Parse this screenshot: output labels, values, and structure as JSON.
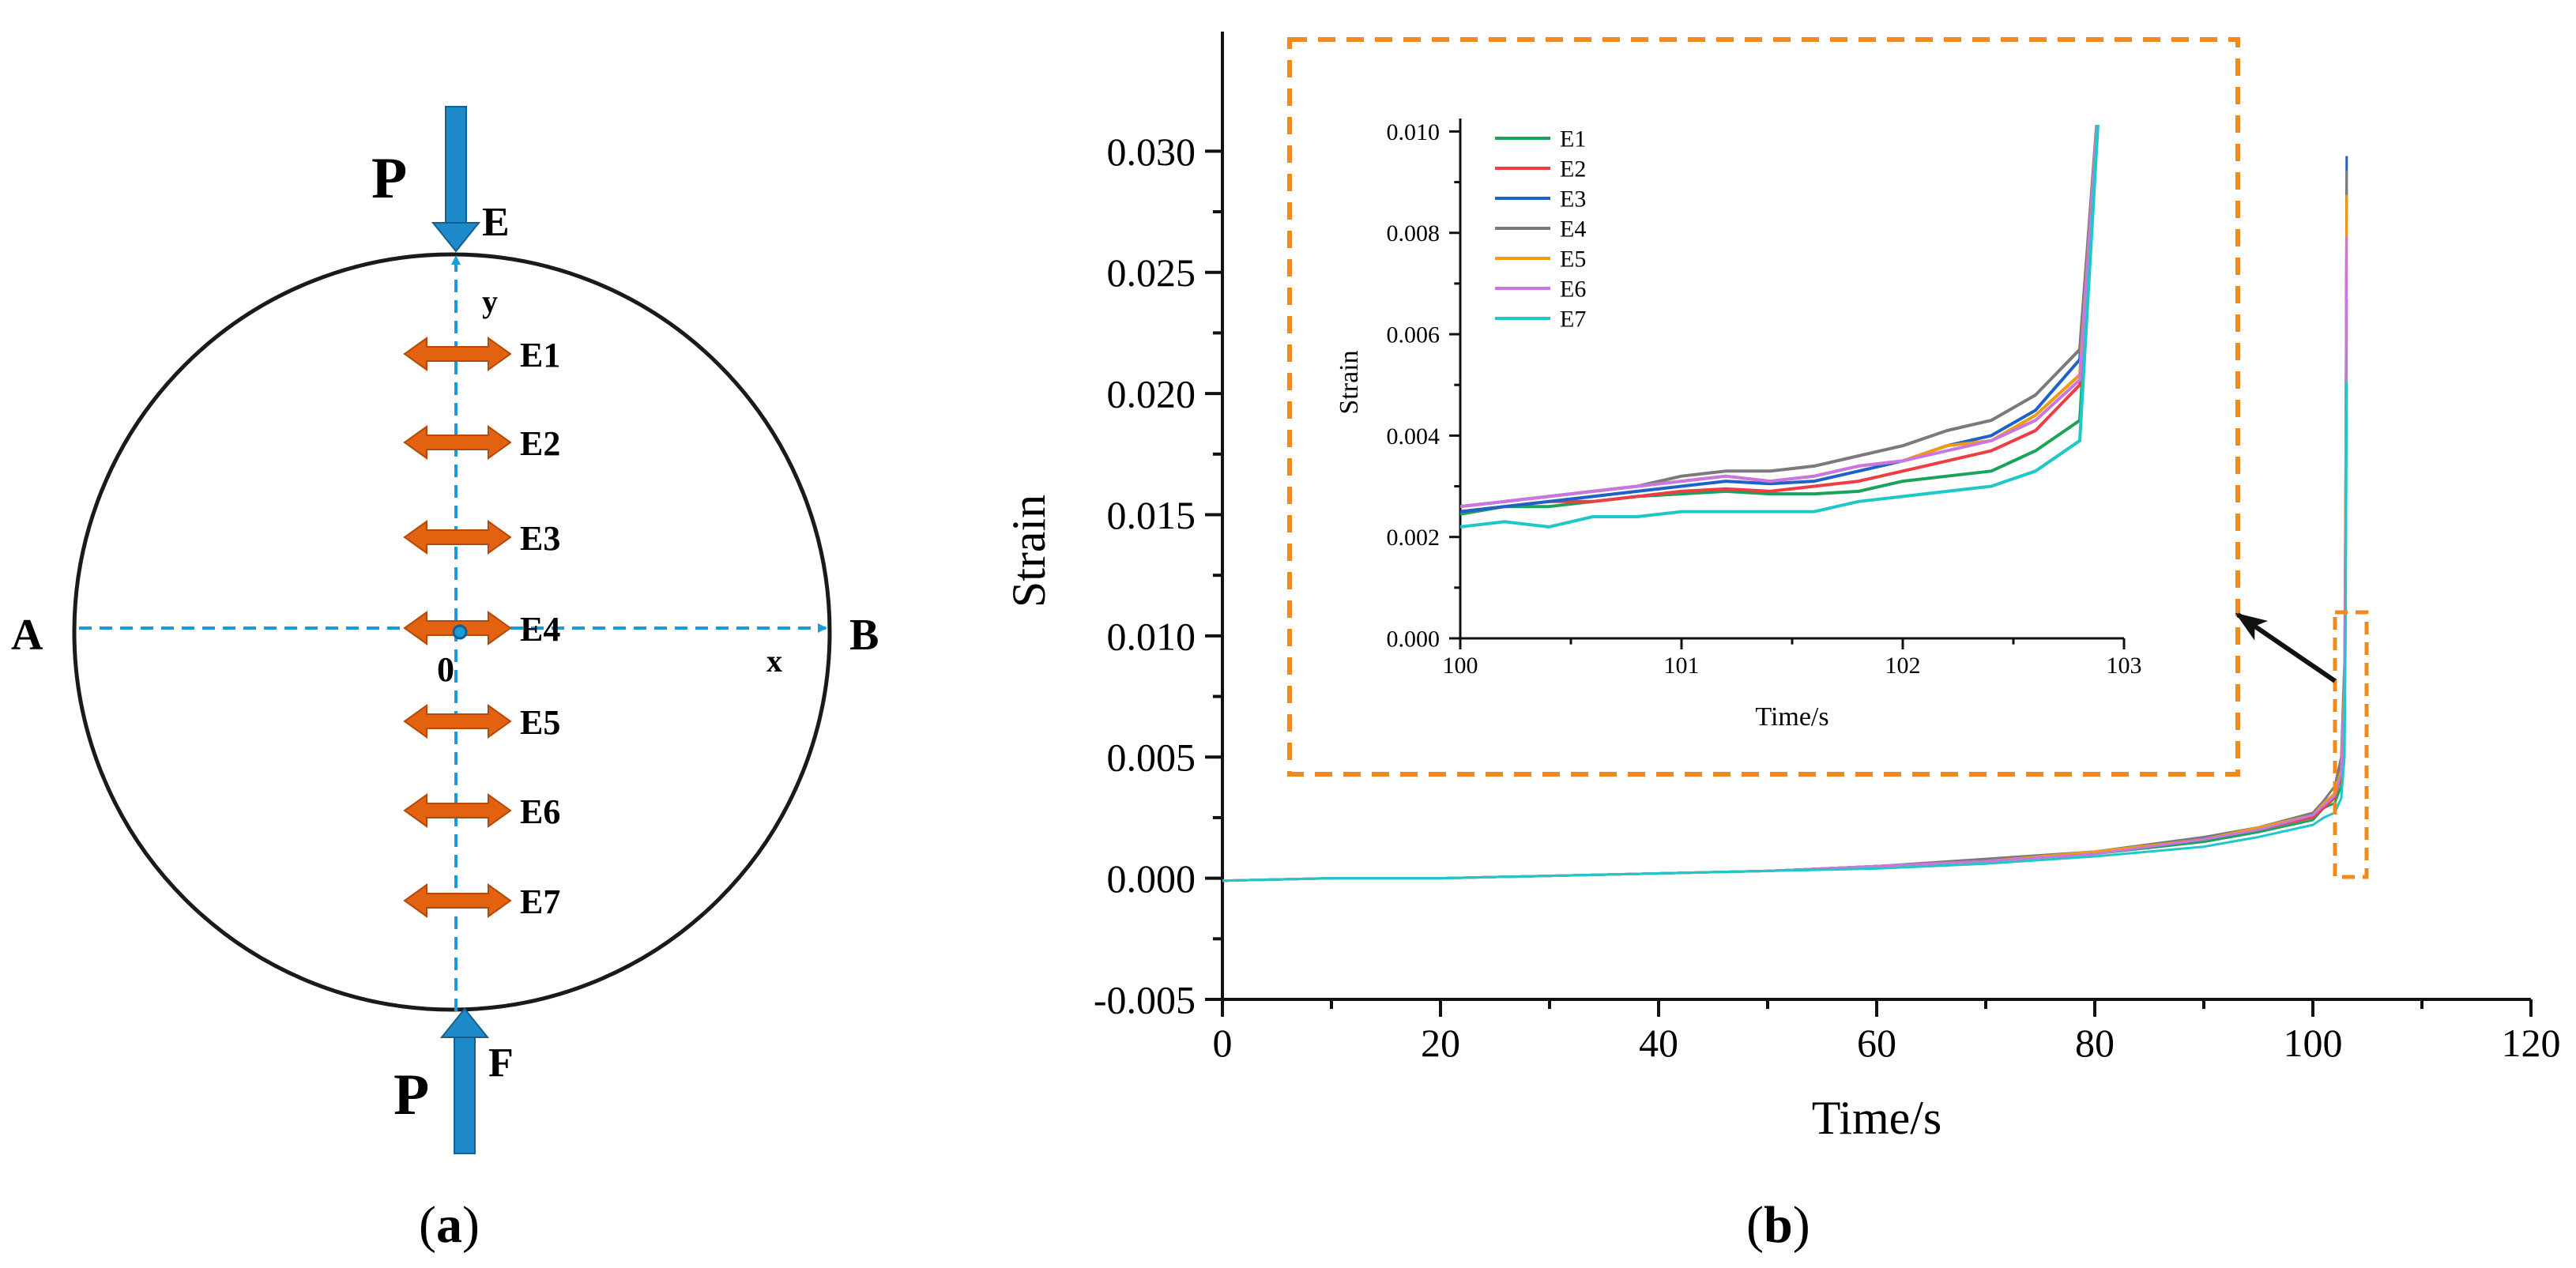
{
  "panel_a": {
    "label_open": "(",
    "label_letter": "a",
    "label_close": ")",
    "load_top": "P",
    "load_bottom": "P",
    "point_top": "E",
    "point_bottom": "F",
    "point_left": "A",
    "point_right": "B",
    "origin": "0",
    "axis_x": "x",
    "axis_y": "y",
    "gauges": [
      "E1",
      "E2",
      "E3",
      "E4",
      "E5",
      "E6",
      "E7"
    ],
    "colors": {
      "circle": "#1a1a1a",
      "dashed_axis": "#1b9bd7",
      "arrow_load": "#1f8ac9",
      "gauge": "#e2620f"
    }
  },
  "panel_b": {
    "label_open": "(",
    "label_letter": "b",
    "label_close": ")",
    "inset_box_color": "#f08a1e"
  },
  "chart_data": [
    {
      "type": "line",
      "xlabel": "Time/s",
      "ylabel": "Strain",
      "xlim": [
        0,
        120
      ],
      "ylim": [
        -0.005,
        0.032
      ],
      "xticks": [
        "0",
        "20",
        "40",
        "60",
        "80",
        "100",
        "120"
      ],
      "yticks": [
        "-0.005",
        "0.000",
        "0.005",
        "0.010",
        "0.015",
        "0.020",
        "0.025",
        "0.030"
      ],
      "x": [
        0,
        10,
        20,
        30,
        40,
        50,
        60,
        70,
        80,
        90,
        95,
        100,
        101,
        102,
        102.6,
        102.9,
        103.0,
        103.1
      ],
      "series": [
        {
          "name": "E1",
          "color": "#1aa45b",
          "values": [
            -0.0001,
            0.0,
            0.0,
            0.0001,
            0.0002,
            0.0003,
            0.0005,
            0.0007,
            0.001,
            0.0015,
            0.0019,
            0.0024,
            0.0029,
            0.0031,
            0.0038,
            0.006,
            0.012,
            0.0239
          ]
        },
        {
          "name": "E2",
          "color": "#ef3e42",
          "values": [
            -0.0001,
            0.0,
            0.0,
            0.0001,
            0.0002,
            0.0003,
            0.0005,
            0.0007,
            0.001,
            0.0016,
            0.002,
            0.0025,
            0.0029,
            0.0033,
            0.0042,
            0.007,
            0.014,
            0.0284
          ]
        },
        {
          "name": "E3",
          "color": "#1e62c8",
          "values": [
            -0.0001,
            0.0,
            0.0,
            0.0001,
            0.0002,
            0.0003,
            0.0005,
            0.0007,
            0.0011,
            0.0016,
            0.002,
            0.0026,
            0.003,
            0.0035,
            0.0046,
            0.008,
            0.016,
            0.0298
          ]
        },
        {
          "name": "E4",
          "color": "#7a7a7a",
          "values": [
            -0.0001,
            0.0,
            0.0,
            0.0001,
            0.0002,
            0.0003,
            0.0005,
            0.0008,
            0.0011,
            0.0017,
            0.0021,
            0.0027,
            0.0032,
            0.0038,
            0.005,
            0.009,
            0.017,
            0.0292
          ]
        },
        {
          "name": "E5",
          "color": "#ee9b12",
          "values": [
            -0.0001,
            0.0,
            0.0,
            0.0001,
            0.0002,
            0.0003,
            0.0005,
            0.0007,
            0.0011,
            0.0016,
            0.0021,
            0.0026,
            0.0031,
            0.0035,
            0.0045,
            0.008,
            0.016,
            0.0282
          ]
        },
        {
          "name": "E6",
          "color": "#c976e0",
          "values": [
            -0.0001,
            0.0,
            0.0,
            0.0001,
            0.0002,
            0.0003,
            0.0005,
            0.0007,
            0.001,
            0.0016,
            0.002,
            0.0026,
            0.003,
            0.0034,
            0.0043,
            0.0075,
            0.015,
            0.0265
          ]
        },
        {
          "name": "E7",
          "color": "#1ec8c8",
          "values": [
            -0.0001,
            0.0,
            0.0,
            0.0001,
            0.0002,
            0.0003,
            0.0004,
            0.0006,
            0.0009,
            0.0013,
            0.0017,
            0.0022,
            0.0025,
            0.0027,
            0.0033,
            0.005,
            0.01,
            0.0205
          ]
        }
      ]
    },
    {
      "type": "line",
      "xlabel": "Time/s",
      "ylabel": "Strain",
      "xlim": [
        100,
        103
      ],
      "ylim": [
        0.0,
        0.0101
      ],
      "xticks": [
        "100",
        "101",
        "102",
        "103"
      ],
      "yticks": [
        "0.000",
        "0.002",
        "0.004",
        "0.006",
        "0.008",
        "0.010"
      ],
      "legend_position": "top-left",
      "x": [
        100,
        100.2,
        100.4,
        100.6,
        100.8,
        101.0,
        101.2,
        101.4,
        101.6,
        101.8,
        102.0,
        102.2,
        102.4,
        102.6,
        102.8,
        102.9
      ],
      "series": [
        {
          "name": "E1",
          "color": "#1aa45b",
          "values": [
            0.00245,
            0.0026,
            0.0026,
            0.0027,
            0.0028,
            0.00285,
            0.0029,
            0.00285,
            0.00285,
            0.0029,
            0.0031,
            0.0032,
            0.0033,
            0.0037,
            0.0043,
            0.0115
          ]
        },
        {
          "name": "E2",
          "color": "#ef3e42",
          "values": [
            0.0025,
            0.0026,
            0.0027,
            0.0027,
            0.0028,
            0.0029,
            0.00295,
            0.0029,
            0.003,
            0.0031,
            0.0033,
            0.0035,
            0.0037,
            0.0041,
            0.005,
            0.0115
          ]
        },
        {
          "name": "E3",
          "color": "#1e62c8",
          "values": [
            0.0025,
            0.0026,
            0.0027,
            0.0028,
            0.0029,
            0.003,
            0.0031,
            0.00305,
            0.0031,
            0.0033,
            0.0035,
            0.0038,
            0.004,
            0.0045,
            0.0055,
            0.0115
          ]
        },
        {
          "name": "E4",
          "color": "#7a7a7a",
          "values": [
            0.0026,
            0.0027,
            0.0028,
            0.0029,
            0.003,
            0.0032,
            0.0033,
            0.0033,
            0.0034,
            0.0036,
            0.0038,
            0.0041,
            0.0043,
            0.0048,
            0.0057,
            0.0115
          ]
        },
        {
          "name": "E5",
          "color": "#ee9b12",
          "values": [
            0.0026,
            0.0027,
            0.0028,
            0.0029,
            0.003,
            0.0031,
            0.0032,
            0.0031,
            0.0032,
            0.0034,
            0.0035,
            0.0038,
            0.0039,
            0.0044,
            0.0052,
            0.0115
          ]
        },
        {
          "name": "E6",
          "color": "#c976e0",
          "values": [
            0.0026,
            0.0027,
            0.0028,
            0.0029,
            0.003,
            0.0031,
            0.0032,
            0.0031,
            0.0032,
            0.0034,
            0.0035,
            0.0037,
            0.0039,
            0.0043,
            0.0051,
            0.0115
          ]
        },
        {
          "name": "E7",
          "color": "#1ec8c8",
          "values": [
            0.0022,
            0.0023,
            0.0022,
            0.0024,
            0.0024,
            0.0025,
            0.0025,
            0.0025,
            0.0025,
            0.0027,
            0.0028,
            0.0029,
            0.003,
            0.0033,
            0.0039,
            0.0115
          ]
        }
      ]
    }
  ]
}
